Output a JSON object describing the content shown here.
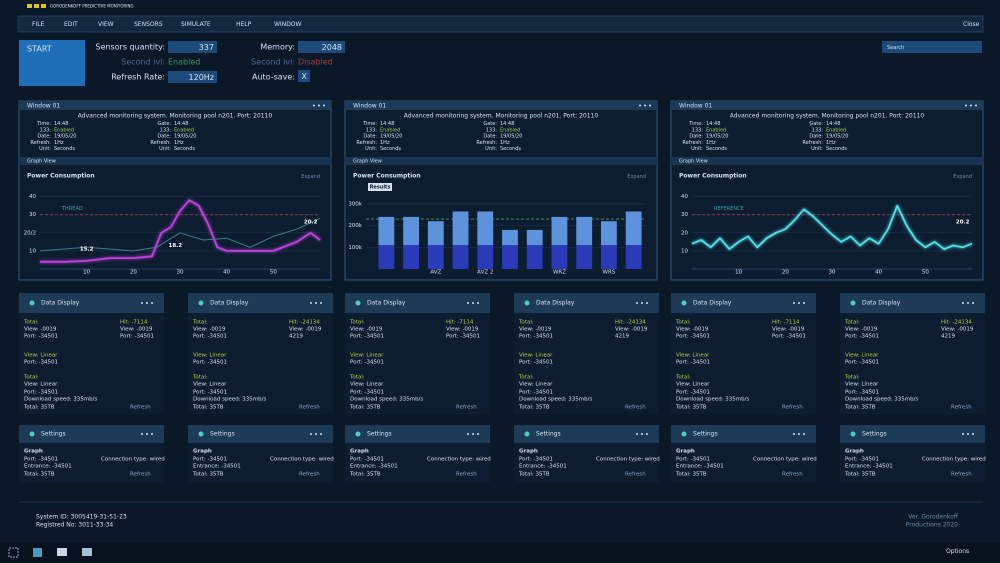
{
  "brand": "GORODENKOFF PREDICTIVE MONITORING",
  "menu": [
    "FILE",
    "EDIT",
    "VIEW",
    "SENSORS",
    "SIMULATE",
    "HELP",
    "WINDOW"
  ],
  "close": "Close",
  "start": "START",
  "controls": {
    "sensors_label": "Sensors quantity:",
    "sensors_value": "337",
    "second_lvl_1": "Second lvl:",
    "second_lvl_1_state": "Enabled",
    "refresh_label": "Refresh Rate:",
    "refresh_value": "120Hz",
    "memory_label": "Memory:",
    "memory_value": "2048",
    "second_lvl_2": "Second lvl:",
    "second_lvl_2_state": "Disabled",
    "autosave_label": "Auto-save:",
    "autosave_value": "X"
  },
  "search": "Search",
  "windows": [
    {
      "title": "Window 01",
      "description": "Advanced monitoring system. Monitoring pool n201. Port: 20110",
      "info_left": [
        [
          "Time:",
          "14:48"
        ],
        [
          "133:",
          "Enabled"
        ],
        [
          "Date:",
          "19/05/20"
        ],
        [
          "Refresh:",
          "1Hz"
        ],
        [
          "Unit:",
          "Seconds"
        ]
      ],
      "info_right": [
        [
          "Gate:",
          "14:48"
        ],
        [
          "133:",
          "Enabled"
        ],
        [
          "Date:",
          "19/05/20"
        ],
        [
          "Refresh:",
          "1Hz"
        ],
        [
          "Unit:",
          "Seconds"
        ]
      ],
      "graph_view": "Graph View",
      "expand": "Expand",
      "chart": {
        "type": "line",
        "title": "Power Consumption",
        "annotation": "THREAD",
        "xlim": [
          0,
          60
        ],
        "ylim": [
          0,
          42
        ],
        "xticks": [
          10,
          20,
          30,
          40,
          50
        ],
        "yticks": [
          10,
          {
            "value": 20,
            "label": "20/2"
          },
          30,
          40
        ],
        "grid": true,
        "threshold": 30,
        "threshold_color": "#c0405a",
        "series": [
          {
            "color": "#c040e0",
            "x": [
              0,
              5,
              10,
              15,
              20,
              24,
              26,
              28,
              30,
              32,
              34,
              36,
              38,
              40,
              45,
              50,
              55,
              58,
              60
            ],
            "values": [
              4,
              4,
              4.5,
              6,
              6,
              7,
              20,
              23,
              32,
              38,
              35,
              25,
              12,
              10,
              10,
              10,
              15,
              20,
              16
            ]
          },
          {
            "color": "#3a7f8a",
            "x": [
              0,
              10,
              20,
              25,
              30,
              35,
              40,
              45,
              50,
              55,
              60
            ],
            "values": [
              10,
              12,
              10,
              12,
              20,
              16,
              17,
              12,
              18,
              22,
              28
            ]
          }
        ],
        "data_labels": [
          {
            "text": "15.2",
            "x": 10,
            "y": 11
          },
          {
            "text": "18.2",
            "x": 29,
            "y": 13
          },
          {
            "text": "20.2",
            "x": 58,
            "y": 26
          }
        ]
      }
    },
    {
      "title": "Window 01",
      "description": "Advanced monitoring system. Monitoring pool n201. Port: 20110",
      "info_left": [
        [
          "Time:",
          "14:48"
        ],
        [
          "133:",
          "Enabled"
        ],
        [
          "Date:",
          "19/05/20"
        ],
        [
          "Refresh:",
          "1Hz"
        ],
        [
          "Unit:",
          "Seconds"
        ]
      ],
      "info_right": [
        [
          "Gate:",
          "14:48"
        ],
        [
          "133:",
          "Enabled"
        ],
        [
          "Date:",
          "19/05/20"
        ],
        [
          "Refresh:",
          "1Hz"
        ],
        [
          "Unit:",
          "Seconds"
        ]
      ],
      "graph_view": "Graph View",
      "expand": "Expand",
      "chart": {
        "type": "bar",
        "title": "Power Consumption",
        "annotation": "Results",
        "stacked": true,
        "ylim": [
          0,
          350000
        ],
        "yticks": [
          {
            "value": 100000,
            "label": "100k"
          },
          {
            "value": 200000,
            "label": "200k"
          },
          {
            "value": 300000,
            "label": "300k"
          }
        ],
        "grid": true,
        "threshold": 230000,
        "threshold_color": "#3aa860",
        "categories": [
          null,
          null,
          "AVZ",
          null,
          "AVZ 2",
          null,
          null,
          "WRZ",
          null,
          "WRS",
          null
        ],
        "series": [
          {
            "color": "#2b3ab8",
            "values": [
              110000,
              110000,
              110000,
              110000,
              110000,
              110000,
              110000,
              110000,
              110000,
              110000,
              110000
            ]
          },
          {
            "color": "#5d92dc",
            "values": [
              130000,
              130000,
              110000,
              155000,
              155000,
              70000,
              70000,
              130000,
              130000,
              110000,
              155000
            ]
          }
        ]
      }
    },
    {
      "title": "Window 01",
      "description": "Advanced monitoring system. Monitoring pool n201. Port: 20110",
      "info_left": [
        [
          "Time:",
          "14:48"
        ],
        [
          "133:",
          "Enabled"
        ],
        [
          "Date:",
          "19/05/20"
        ],
        [
          "Refresh:",
          "1Hz"
        ],
        [
          "Unit:",
          "Seconds"
        ]
      ],
      "info_right": [
        [
          "Gate:",
          "14:48"
        ],
        [
          "133:",
          "Enabled"
        ],
        [
          "Date:",
          "19/05/20"
        ],
        [
          "Refresh:",
          "1Hz"
        ],
        [
          "Unit:",
          "Seconds"
        ]
      ],
      "graph_view": "Graph View",
      "expand": "Expand",
      "chart": {
        "type": "line",
        "title": "Power Consumption",
        "annotation": "REFERENCE",
        "xlim": [
          0,
          60
        ],
        "ylim": [
          0,
          42
        ],
        "xticks": [
          10,
          20,
          30,
          40,
          50
        ],
        "yticks": [
          10,
          20,
          30,
          40
        ],
        "grid": true,
        "threshold": 30,
        "threshold_color": "#c0405a",
        "series": [
          {
            "color": "#4fe0e8",
            "x": [
              0,
              2,
              4,
              6,
              8,
              10,
              12,
              14,
              16,
              18,
              20,
              22,
              24,
              26,
              28,
              30,
              32,
              34,
              36,
              38,
              40,
              42,
              44,
              46,
              48,
              50,
              52,
              54,
              56,
              58,
              60
            ],
            "values": [
              14,
              16,
              12,
              17,
              11,
              15,
              18,
              12,
              17,
              20,
              22,
              27,
              33,
              29,
              24,
              19,
              15,
              18,
              13,
              17,
              14,
              22,
              35,
              24,
              16,
              12,
              15,
              11,
              13,
              12,
              14
            ]
          }
        ],
        "data_labels": [
          {
            "text": "20.2",
            "x": 58,
            "y": 26
          }
        ]
      }
    }
  ],
  "data_panels": [
    {
      "title": "Data Display",
      "rows": [
        [
          "Total:",
          "Hit: -7114"
        ],
        [
          "View: -0019",
          "View: -0019"
        ],
        [
          "Port: -34501",
          "Port: -34501"
        ],
        [
          "View: Linear"
        ],
        [
          "Port: -34501"
        ],
        [
          "Total:"
        ],
        [
          "View: Linear"
        ],
        [
          "Port: -34501"
        ],
        [
          "Download speed: 335mb/s"
        ],
        [
          "Total: 35TB",
          "Refresh"
        ]
      ]
    },
    {
      "title": "Data Display",
      "rows": [
        [
          "Total:",
          "Hit: -24134"
        ],
        [
          "View: -0019",
          "View: -0019"
        ],
        [
          "Port: -34501",
          "4219"
        ],
        [
          "View: Linear"
        ],
        [
          "Port: -34501"
        ],
        [
          "Total:"
        ],
        [
          "View: Linear"
        ],
        [
          "Port: -34501"
        ],
        [
          "Download speed: 335mb/s"
        ],
        [
          "Total: 35TB",
          "Refresh"
        ]
      ]
    },
    {
      "title": "Data Display",
      "rows": [
        [
          "Total:",
          "Hit: -7114"
        ],
        [
          "View: -0019",
          "View: -0019"
        ],
        [
          "Port: -34501",
          "Port: -34501"
        ],
        [
          "View: Linear"
        ],
        [
          "Port: -34501"
        ],
        [
          "Total:"
        ],
        [
          "View: Linear"
        ],
        [
          "Port: -34501"
        ],
        [
          "Download speed: 335mb/s"
        ],
        [
          "Total: 35TB",
          "Refresh"
        ]
      ]
    },
    {
      "title": "Data Display",
      "rows": [
        [
          "Total:",
          "Hit: -24134"
        ],
        [
          "View: -0019",
          "View: -0019"
        ],
        [
          "Port: -34501",
          "4219"
        ],
        [
          "View: Linear"
        ],
        [
          "Port: -34501"
        ],
        [
          "Total:"
        ],
        [
          "View: Linear"
        ],
        [
          "Port: -34501"
        ],
        [
          "Download speed: 335mb/s"
        ],
        [
          "Total: 35TB",
          "Refresh"
        ]
      ]
    },
    {
      "title": "Data Display",
      "rows": [
        [
          "Total:",
          "Hit: -7114"
        ],
        [
          "View: -0019",
          "View: -0019"
        ],
        [
          "Port: -34501",
          "Port: -34501"
        ],
        [
          "View: Linear"
        ],
        [
          "Port: -34501"
        ],
        [
          "Total:"
        ],
        [
          "View: Linear"
        ],
        [
          "Port: -34501"
        ],
        [
          "Download speed: 335mb/s"
        ],
        [
          "Total: 35TB",
          "Refresh"
        ]
      ]
    },
    {
      "title": "Data Display",
      "rows": [
        [
          "Total:",
          "Hit: -24134"
        ],
        [
          "View: -0019",
          "View: -0019"
        ],
        [
          "Port: -34501",
          "4219"
        ],
        [
          "View: Linear"
        ],
        [
          "Port: -34501"
        ],
        [
          "Total:"
        ],
        [
          "View: Linear"
        ],
        [
          "Port: -34501"
        ],
        [
          "Download speed: 335mb/s"
        ],
        [
          "Total: 35TB",
          "Refresh"
        ]
      ]
    }
  ],
  "settings_panels": [
    {
      "title": "Settings",
      "rows": [
        [
          "Graph"
        ],
        [
          "Port: -34501",
          "Connection type: wired"
        ],
        [
          "Entrance: -34501"
        ],
        [
          "Total: 35TB",
          "Refresh"
        ]
      ]
    },
    {
      "title": "Settings",
      "rows": [
        [
          "Graph"
        ],
        [
          "Port: -34501",
          "Connection type: wired"
        ],
        [
          "Entrance: -34501"
        ],
        [
          "Total: 35TB",
          "Refresh"
        ]
      ]
    },
    {
      "title": "Settings",
      "rows": [
        [
          "Graph"
        ],
        [
          "Port: -34501",
          "Connection type: wired"
        ],
        [
          "Entrance: -34501"
        ],
        [
          "Total: 35TB",
          "Refresh"
        ]
      ]
    },
    {
      "title": "Settings",
      "rows": [
        [
          "Graph"
        ],
        [
          "Port: -34501",
          "Connection type: wired"
        ],
        [
          "Entrance: -34501"
        ],
        [
          "Total: 35TB",
          "Refresh"
        ]
      ]
    },
    {
      "title": "Settings",
      "rows": [
        [
          "Graph"
        ],
        [
          "Port: -34501",
          "Connection type: wired"
        ],
        [
          "Entrance: -34501"
        ],
        [
          "Total: 35TB",
          "Refresh"
        ]
      ]
    },
    {
      "title": "Settings",
      "rows": [
        [
          "Graph"
        ],
        [
          "Port: -34501",
          "Connection type: wired"
        ],
        [
          "Entrance: -34501"
        ],
        [
          "Total: 35TB",
          "Refresh"
        ]
      ]
    }
  ],
  "footer": {
    "system_id": "System ID: 3005419-31-51-23",
    "registered": "Registred No: 3011-33-34",
    "version": "Ver. Gorodenkoff",
    "productions": "Productions 2020"
  },
  "taskbar": {
    "options": "Options"
  }
}
